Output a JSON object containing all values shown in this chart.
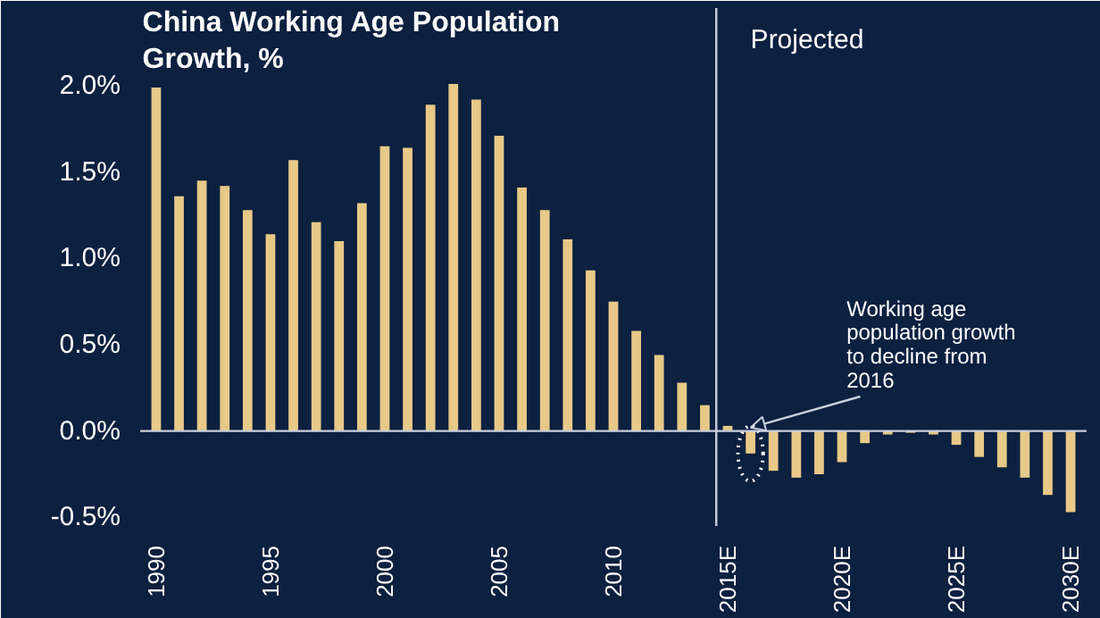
{
  "chart_data": {
    "type": "bar",
    "title": "China Working Age Population Growth, %",
    "x": [
      1990,
      1991,
      1992,
      1993,
      1994,
      1995,
      1996,
      1997,
      1998,
      1999,
      2000,
      2001,
      2002,
      2003,
      2004,
      2005,
      2006,
      2007,
      2008,
      2009,
      2010,
      2011,
      2012,
      2013,
      2014,
      2015,
      2016,
      2017,
      2018,
      2019,
      2020,
      2021,
      2022,
      2023,
      2024,
      2025,
      2026,
      2027,
      2028,
      2029,
      2030
    ],
    "series": [
      {
        "color": "#e8c987",
        "values": [
          1.99,
          1.36,
          1.45,
          1.42,
          1.28,
          1.14,
          1.57,
          1.21,
          1.1,
          1.32,
          1.65,
          1.64,
          1.89,
          2.01,
          1.92,
          1.71,
          1.41,
          1.28,
          1.11,
          0.93,
          0.75,
          0.58,
          0.44,
          0.28,
          0.15,
          0.03,
          -0.13,
          -0.23,
          -0.27,
          -0.25,
          -0.18,
          -0.07,
          -0.02,
          -0.01,
          -0.02,
          -0.08,
          -0.15,
          -0.21,
          -0.27,
          -0.37,
          -0.47
        ]
      }
    ],
    "xlim": [
      1989.3,
      2030.7
    ],
    "xticks": [
      1990,
      1995,
      2000,
      2005,
      2010,
      {
        "value": 2015,
        "label": "2015E"
      },
      {
        "value": 2020,
        "label": "2020E"
      },
      {
        "value": 2025,
        "label": "2025E"
      },
      {
        "value": 2030,
        "label": "2030E"
      }
    ],
    "ylim": [
      -0.55,
      2.45
    ],
    "yticks": [
      {
        "value": -0.5,
        "label": "-0.5%"
      },
      {
        "value": 0,
        "label": "0.0%"
      },
      {
        "value": 0.5,
        "label": "0.5%"
      },
      {
        "value": 1.0,
        "label": "1.0%"
      },
      {
        "value": 1.5,
        "label": "1.5%"
      },
      {
        "value": 2.0,
        "label": "2.0%"
      }
    ],
    "ref_lines": [
      {
        "axis": "x",
        "value": 2014.5,
        "label": "Projected",
        "color": "#c8d0dc"
      },
      {
        "axis": "y",
        "value": 0,
        "color": "#c8d0dc"
      }
    ],
    "annotations": [
      {
        "text": "Working age population growth to decline from 2016",
        "x": 2016,
        "y": 0.02
      }
    ],
    "grid": false
  }
}
